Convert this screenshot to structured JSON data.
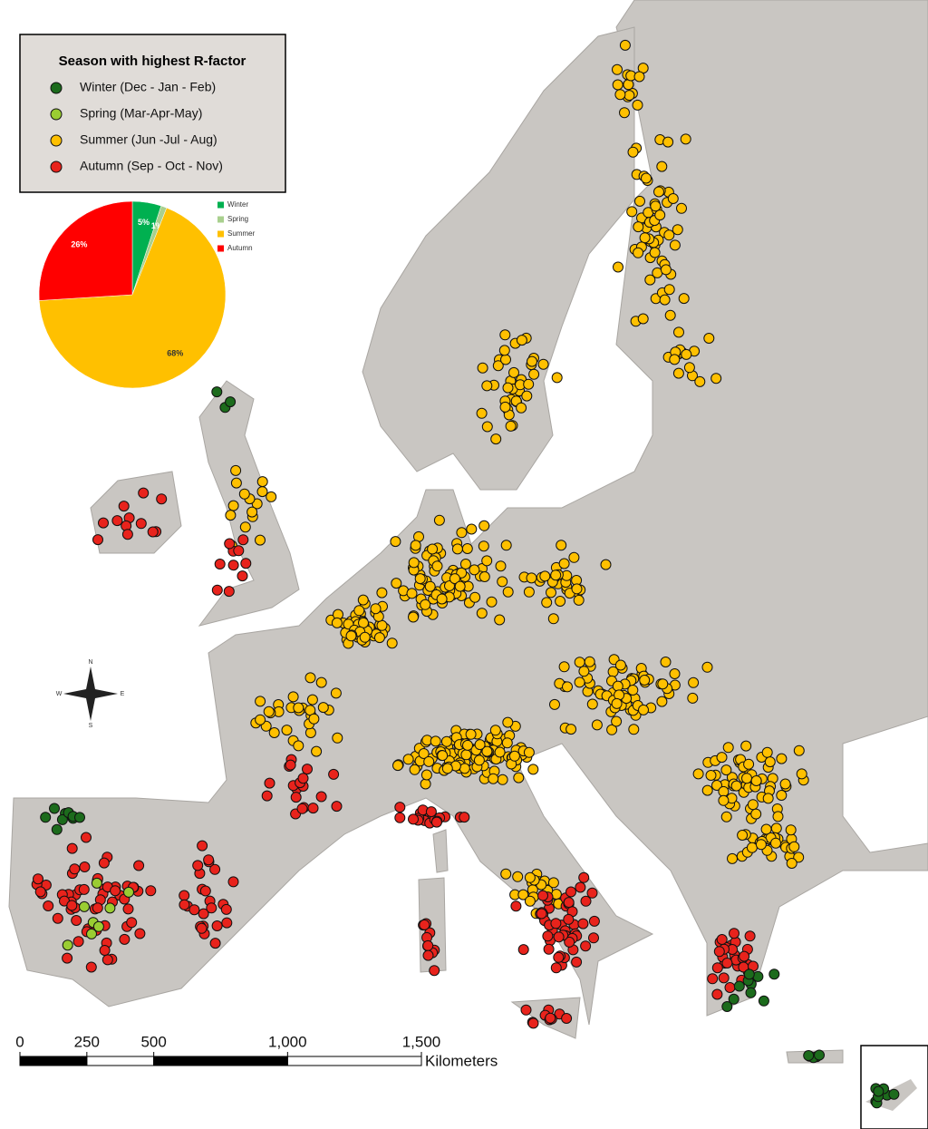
{
  "legend": {
    "title": "Season with highest R-factor",
    "items": [
      {
        "label": "Winter (Dec - Jan - Feb)",
        "color": "#1c6b1c"
      },
      {
        "label": "Spring (Mar-Apr-May)",
        "color": "#9acd32"
      },
      {
        "label": "Summer (Jun -Jul - Aug)",
        "color": "#ffc000"
      },
      {
        "label": "Autumn (Sep - Oct - Nov)",
        "color": "#e8231c"
      }
    ]
  },
  "chart_data": {
    "type": "pie",
    "categories": [
      "Winter",
      "Spring",
      "Summer",
      "Autumn"
    ],
    "values": [
      5,
      1,
      68,
      26
    ],
    "value_labels": [
      "5%",
      "1%",
      "68%",
      "26%"
    ],
    "colors": [
      "#00b050",
      "#a9d08e",
      "#ffc000",
      "#ff0000"
    ]
  },
  "scale_bar": {
    "ticks": [
      0,
      250,
      500,
      {
        "value": 1000,
        "label": "1,000"
      },
      {
        "value": 1500,
        "label": "1,500"
      }
    ],
    "unit": "Kilometers"
  },
  "compass": {
    "north": "N",
    "south": "S",
    "east": "E",
    "west": "W"
  }
}
